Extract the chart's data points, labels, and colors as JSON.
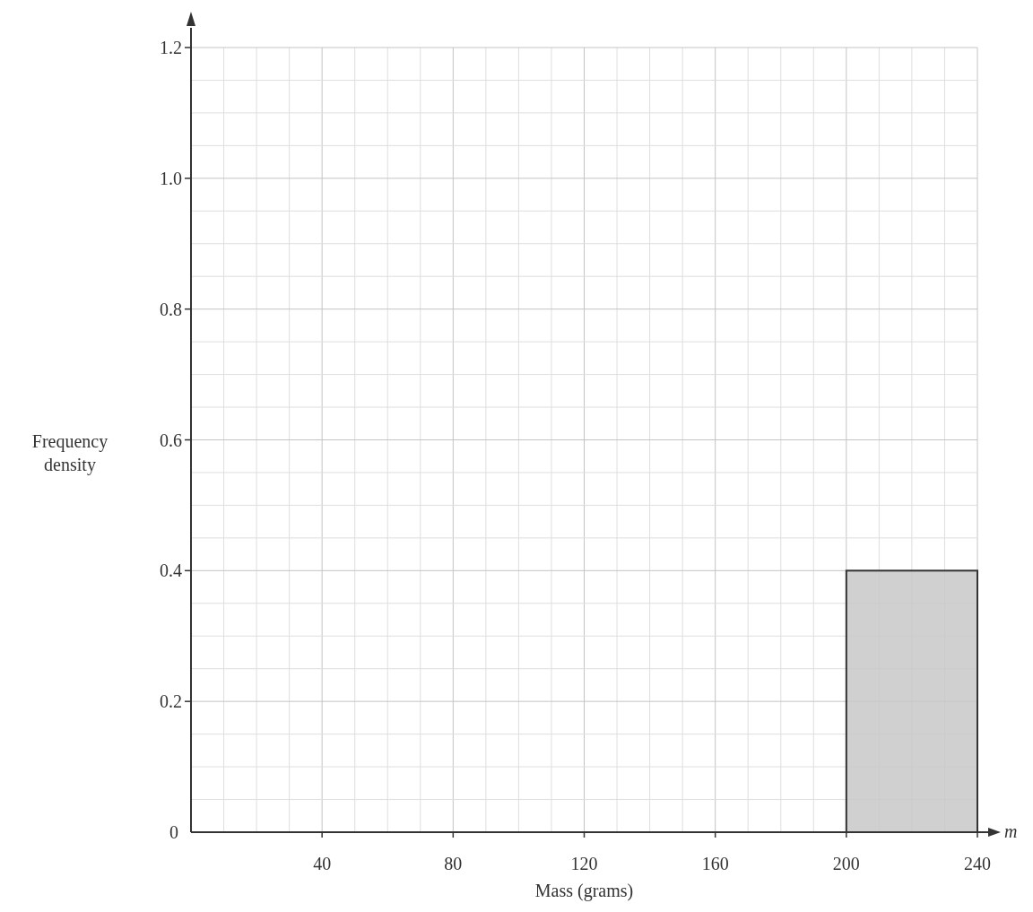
{
  "chart_data": {
    "type": "histogram",
    "xlabel": "Mass (grams)",
    "ylabel": "Frequency density",
    "bins": [
      200,
      240
    ],
    "values": [
      0.4
    ],
    "color": "#c8c8c8",
    "xlim": [
      0,
      240
    ],
    "ylim": [
      0,
      1.2
    ],
    "xticks": [
      {
        "value": 0,
        "label": null
      },
      {
        "value": 10,
        "label": null
      },
      {
        "value": 20,
        "label": null
      },
      {
        "value": 30,
        "label": null
      },
      40,
      {
        "value": 50,
        "label": null
      },
      {
        "value": 60,
        "label": null
      },
      {
        "value": 70,
        "label": null
      },
      80,
      {
        "value": 90,
        "label": null
      },
      {
        "value": 100,
        "label": null
      },
      {
        "value": 110,
        "label": null
      },
      120,
      {
        "value": 130,
        "label": null
      },
      {
        "value": 140,
        "label": null
      },
      {
        "value": 150,
        "label": null
      },
      160,
      {
        "value": 170,
        "label": null
      },
      {
        "value": 180,
        "label": null
      },
      {
        "value": 190,
        "label": null
      },
      200,
      {
        "value": 210,
        "label": null
      },
      {
        "value": 220,
        "label": null
      },
      {
        "value": 230,
        "label": null
      },
      240
    ],
    "yticks": [
      0,
      {
        "value": 0.05,
        "label": null
      },
      {
        "value": 0.1,
        "label": null
      },
      {
        "value": 0.15,
        "label": null
      },
      {
        "value": 0.2,
        "label": "0.2"
      },
      {
        "value": 0.25,
        "label": null
      },
      {
        "value": 0.3,
        "label": null
      },
      {
        "value": 0.35,
        "label": null
      },
      {
        "value": 0.4,
        "label": "0.4"
      },
      {
        "value": 0.45,
        "label": null
      },
      {
        "value": 0.5,
        "label": null
      },
      {
        "value": 0.55,
        "label": null
      },
      {
        "value": 0.6,
        "label": "0.6"
      },
      {
        "value": 0.65,
        "label": null
      },
      {
        "value": 0.7,
        "label": null
      },
      {
        "value": 0.75,
        "label": null
      },
      {
        "value": 0.8,
        "label": "0.8"
      },
      {
        "value": 0.85,
        "label": null
      },
      {
        "value": 0.9,
        "label": null
      },
      {
        "value": 0.95,
        "label": null
      },
      {
        "value": 1.0,
        "label": "1.0"
      },
      {
        "value": 1.05,
        "label": null
      },
      {
        "value": 1.1,
        "label": null
      },
      {
        "value": 1.15,
        "label": null
      },
      {
        "value": 1.2,
        "label": "1.2"
      }
    ],
    "grid": true,
    "annotations": [
      "m"
    ]
  }
}
